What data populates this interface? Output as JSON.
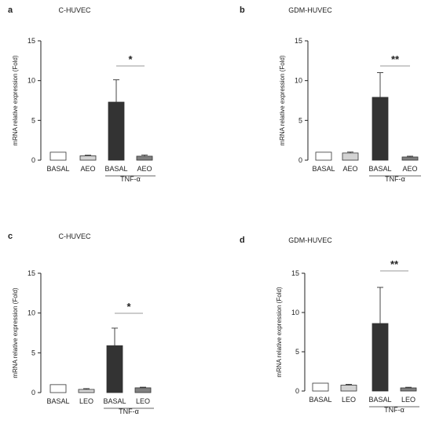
{
  "chart_data": [
    {
      "type": "bar",
      "panel": "a",
      "title": "C-HUVEC",
      "ylabel": "mRNA relative expression (Fold)",
      "ylim": [
        0,
        15
      ],
      "yticks": [
        "0",
        "5",
        "10",
        "15"
      ],
      "categories": [
        "BASAL",
        "AEO",
        "BASAL",
        "AEO"
      ],
      "values": [
        1.0,
        0.55,
        7.3,
        0.5
      ],
      "errors": [
        0,
        0.08,
        2.8,
        0.15
      ],
      "colors": [
        "#ffffff",
        "#d3d3d3",
        "#333333",
        "#808080"
      ],
      "group_label": "TNF-α",
      "significance": "*"
    },
    {
      "type": "bar",
      "panel": "b",
      "title": "GDM-HUVEC",
      "ylabel": "mRNA relative expression (Fold)",
      "ylim": [
        0,
        15
      ],
      "yticks": [
        "0",
        "5",
        "10",
        "15"
      ],
      "categories": [
        "BASAL",
        "AEO",
        "BASAL",
        "AEO"
      ],
      "values": [
        1.0,
        0.9,
        7.9,
        0.4
      ],
      "errors": [
        0,
        0.12,
        3.1,
        0.1
      ],
      "colors": [
        "#ffffff",
        "#d3d3d3",
        "#333333",
        "#808080"
      ],
      "group_label": "TNF-α",
      "significance": "**"
    },
    {
      "type": "bar",
      "panel": "c",
      "title": "C-HUVEC",
      "ylabel": "mRNA relative expression (Fold)",
      "ylim": [
        0,
        15
      ],
      "yticks": [
        "0",
        "5",
        "10",
        "15"
      ],
      "categories": [
        "BASAL",
        "LEO",
        "BASAL",
        "LEO"
      ],
      "values": [
        1.0,
        0.4,
        5.9,
        0.6
      ],
      "errors": [
        0,
        0.1,
        2.2,
        0.08
      ],
      "colors": [
        "#ffffff",
        "#d3d3d3",
        "#333333",
        "#808080"
      ],
      "group_label": "TNF-α",
      "significance": "*"
    },
    {
      "type": "bar",
      "panel": "d",
      "title": "GDM-HUVEC",
      "ylabel": "mRNA relative expression (Fold)",
      "ylim": [
        0,
        15
      ],
      "yticks": [
        "0",
        "5",
        "10",
        "15"
      ],
      "categories": [
        "BASAL",
        "LEO",
        "BASAL",
        "LEO"
      ],
      "values": [
        1.0,
        0.75,
        8.6,
        0.4
      ],
      "errors": [
        0,
        0.1,
        4.6,
        0.08
      ],
      "colors": [
        "#ffffff",
        "#d3d3d3",
        "#333333",
        "#808080"
      ],
      "group_label": "TNF-α",
      "significance": "**"
    }
  ]
}
